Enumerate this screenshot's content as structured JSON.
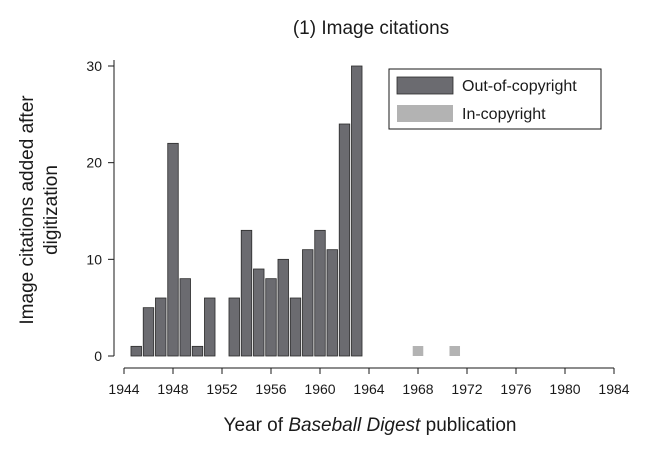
{
  "chart_data": {
    "type": "bar",
    "title": "(1) Image citations",
    "ylabel_lines": [
      "Image citations added after",
      "digitization"
    ],
    "xlabel": {
      "prefix": "Year of ",
      "italic": "Baseball Digest",
      "suffix": " publication"
    },
    "xlim": [
      1944,
      1984
    ],
    "ylim": [
      0,
      30
    ],
    "xticks": [
      1944,
      1948,
      1952,
      1956,
      1960,
      1964,
      1968,
      1972,
      1976,
      1980,
      1984
    ],
    "yticks": [
      0,
      10,
      20,
      30
    ],
    "grid": false,
    "legend_position": "top-right",
    "series": [
      {
        "name": "Out-of-copyright",
        "color": "#6b6b70",
        "x": [
          1945,
          1946,
          1947,
          1948,
          1949,
          1950,
          1951,
          1953,
          1954,
          1955,
          1956,
          1957,
          1958,
          1959,
          1960,
          1961,
          1962,
          1963
        ],
        "values": [
          1,
          5,
          6,
          22,
          8,
          1,
          6,
          6,
          13,
          9,
          8,
          10,
          6,
          11,
          13,
          11,
          24,
          30
        ]
      },
      {
        "name": "In-copyright",
        "color": "#b3b3b3",
        "x": [
          1968,
          1971
        ],
        "values": [
          0,
          0
        ]
      }
    ]
  }
}
